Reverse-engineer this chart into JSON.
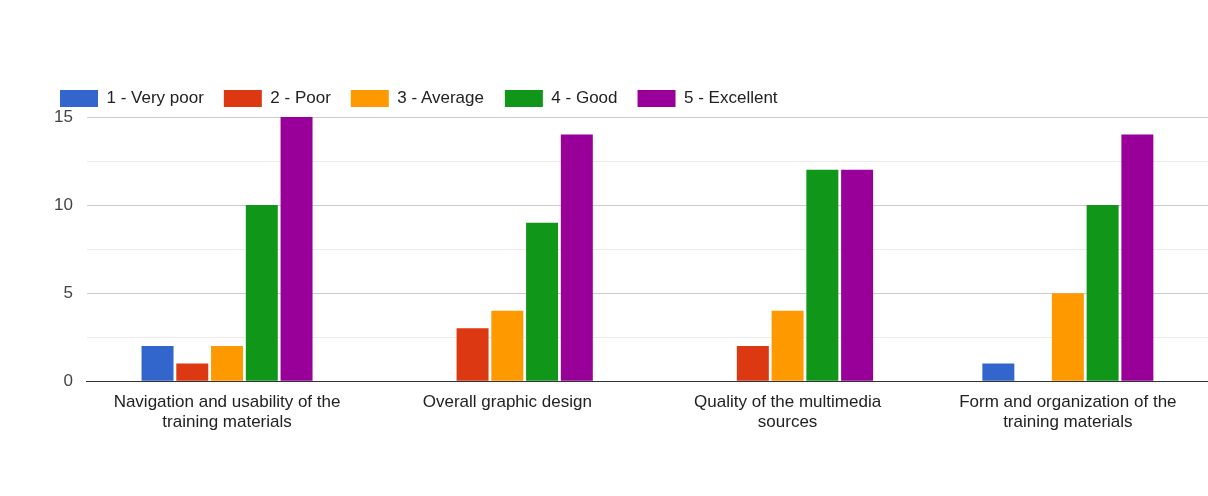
{
  "chart_data": {
    "type": "bar",
    "categories": [
      "Navigation and usability of the training materials",
      "Overall graphic design",
      "Quality of the multimedia sources",
      "Form and organization of the training materials"
    ],
    "series": [
      {
        "name": "1 - Very poor",
        "color": "#3366cc",
        "values": [
          2,
          0,
          0,
          1
        ]
      },
      {
        "name": "2 - Poor",
        "color": "#dc3912",
        "values": [
          1,
          3,
          2,
          0
        ]
      },
      {
        "name": "3 - Average",
        "color": "#ff9900",
        "values": [
          2,
          4,
          4,
          5
        ]
      },
      {
        "name": "4 - Good",
        "color": "#109618",
        "values": [
          10,
          9,
          12,
          10
        ]
      },
      {
        "name": "5 - Excellent",
        "color": "#990099",
        "values": [
          15,
          14,
          12,
          14
        ]
      }
    ],
    "ylim": [
      0,
      15
    ],
    "yticks": [
      0,
      {
        "value": 2.5,
        "label": null
      },
      5,
      {
        "value": 7.5,
        "label": null
      },
      10,
      {
        "value": 12.5,
        "label": null
      },
      15
    ],
    "grid": "y",
    "legend": "top left"
  }
}
